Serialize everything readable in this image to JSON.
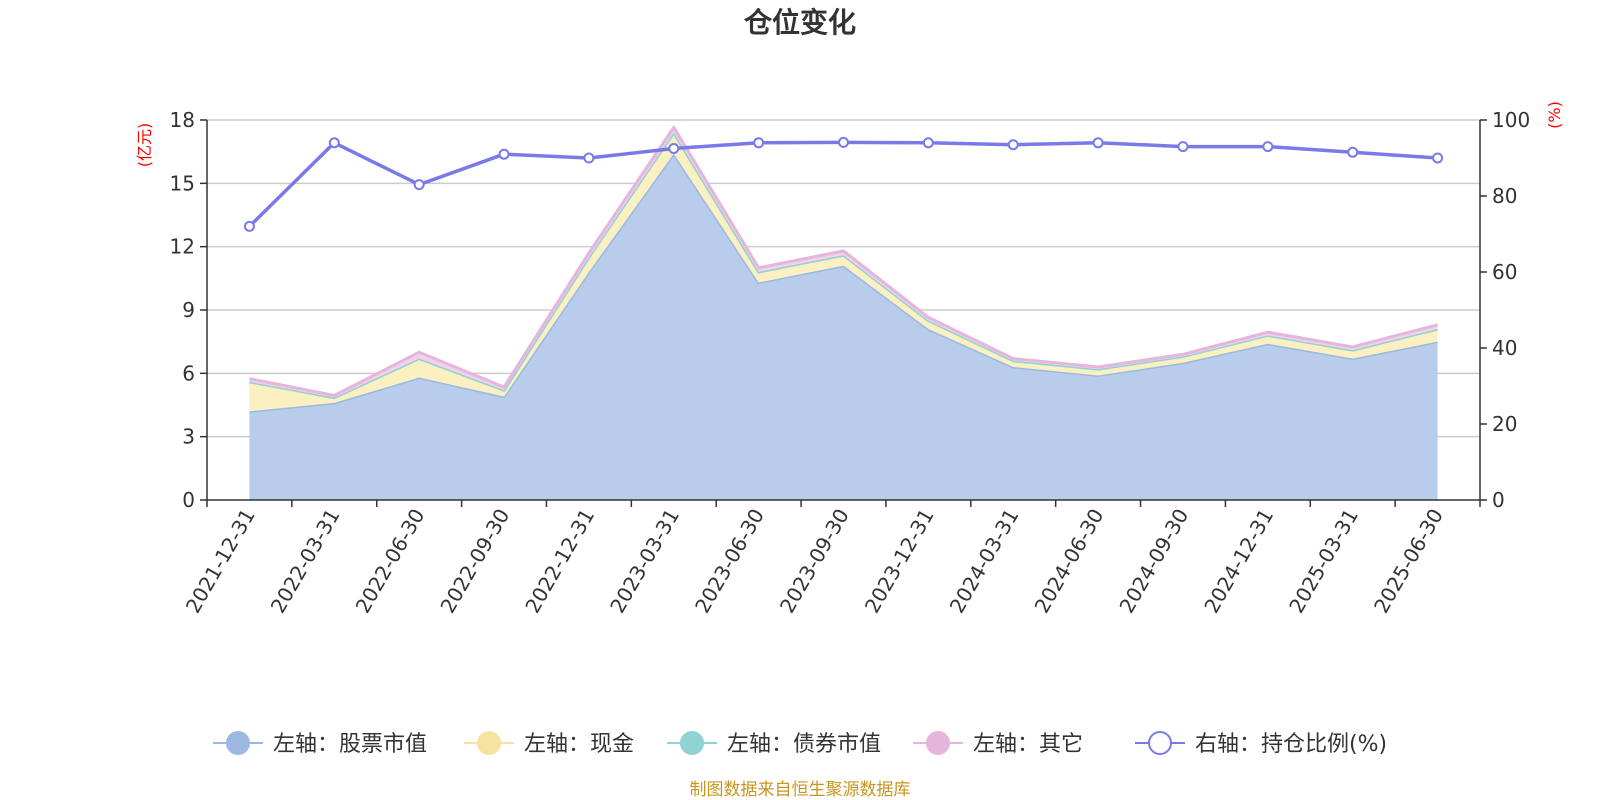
{
  "chart_data": {
    "type": "area",
    "title": "仓位变化",
    "left_axis": {
      "unit": "(亿元)",
      "ylim": [
        0,
        18
      ],
      "ticks": [
        0,
        3,
        6,
        9,
        12,
        15,
        18
      ]
    },
    "right_axis": {
      "unit": "(%)",
      "ylim": [
        0,
        100
      ],
      "ticks": [
        0,
        20,
        40,
        60,
        80,
        100
      ]
    },
    "x": [
      "2021-12-31",
      "2022-03-31",
      "2022-06-30",
      "2022-09-30",
      "2022-12-31",
      "2023-03-31",
      "2023-06-30",
      "2023-09-30",
      "2023-12-31",
      "2024-03-31",
      "2024-06-30",
      "2024-09-30",
      "2024-12-31",
      "2025-03-31",
      "2025-06-30"
    ],
    "stacked_series": [
      {
        "name": "左轴：股票市值",
        "axis": "left",
        "color": "#9db8e0",
        "fill": "#b8cceb",
        "values": [
          4.2,
          4.6,
          5.8,
          4.9,
          10.8,
          16.4,
          10.3,
          11.1,
          8.1,
          6.3,
          5.9,
          6.5,
          7.4,
          6.7,
          7.5
        ]
      },
      {
        "name": "左轴：现金",
        "axis": "left",
        "color": "#f7e3a1",
        "fill": "#fbf0c2",
        "values": [
          1.4,
          0.25,
          0.9,
          0.3,
          0.7,
          1.0,
          0.5,
          0.5,
          0.4,
          0.3,
          0.3,
          0.3,
          0.4,
          0.4,
          0.6
        ]
      },
      {
        "name": "左轴：债券市值",
        "axis": "left",
        "color": "#8fd3d3",
        "fill": "#bde7e7",
        "values": [
          0,
          0,
          0,
          0,
          0,
          0,
          0,
          0,
          0,
          0,
          0,
          0,
          0,
          0,
          0
        ]
      },
      {
        "name": "左轴：其它",
        "axis": "left",
        "color": "#e5b5dc",
        "fill": "#f0d2eb",
        "values": [
          0.15,
          0.1,
          0.3,
          0.15,
          0.2,
          0.25,
          0.2,
          0.2,
          0.15,
          0.1,
          0.1,
          0.1,
          0.15,
          0.15,
          0.2
        ]
      }
    ],
    "line_series": {
      "name": "右轴：持仓比例(%)",
      "axis": "right",
      "color": "#7a79ea",
      "values": [
        72,
        94,
        83,
        91,
        90,
        92.5,
        94,
        94.1,
        94,
        93.5,
        94,
        93,
        93,
        91.5,
        90
      ]
    },
    "grid": true,
    "legend": "bottom"
  },
  "source": "制图数据来自恒生聚源数据库"
}
